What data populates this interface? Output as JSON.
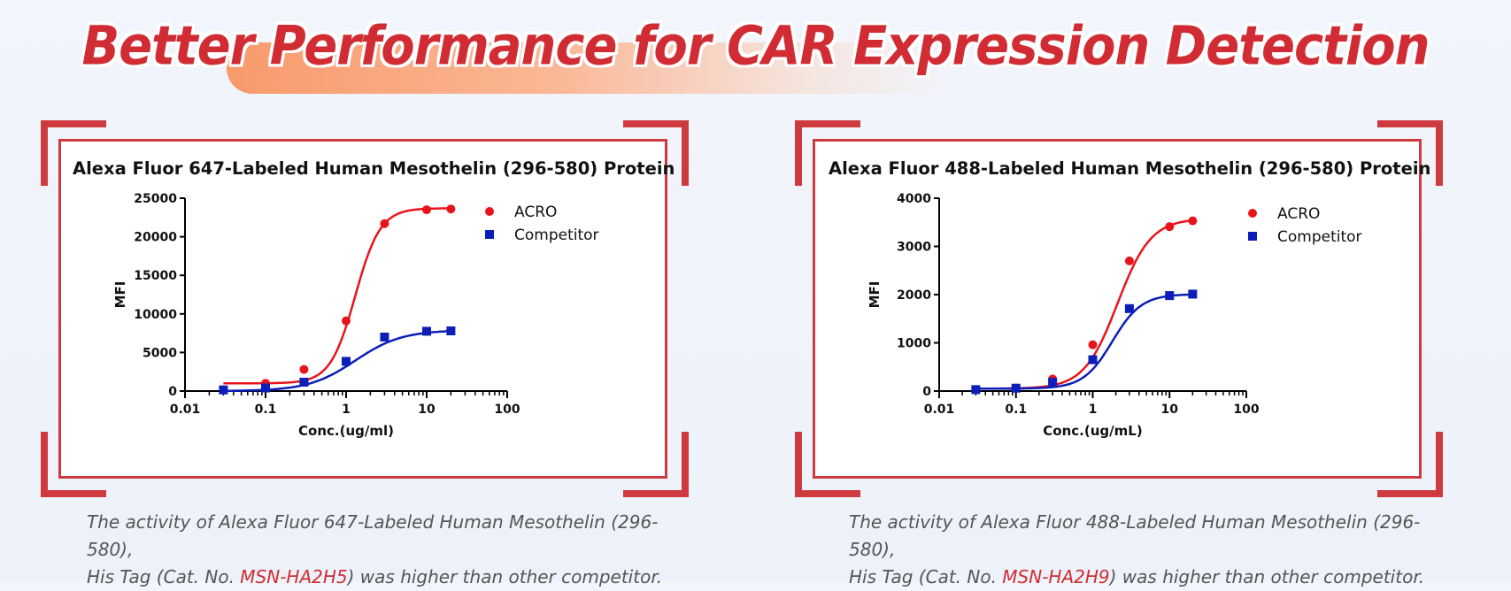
{
  "banner": {
    "title": "Better Performance for CAR Expression Detection"
  },
  "colors": {
    "accent": "#d12c33",
    "acro": "#e8141c",
    "competitor": "#0c1eb8"
  },
  "panels": [
    {
      "caption": {
        "line1": "The activity of Alexa Fluor 647-Labeled Human Mesothelin (296-580),",
        "prefix": "His Tag (Cat. No. ",
        "cat_no": "MSN-HA2H5",
        "suffix": ") was higher than other competitor."
      }
    },
    {
      "caption": {
        "line1": "The activity of Alexa Fluor 488-Labeled Human Mesothelin (296-580),",
        "prefix": "His Tag (Cat. No. ",
        "cat_no": "MSN-HA2H9",
        "suffix": ") was higher than other competitor."
      }
    }
  ],
  "chart_data": [
    {
      "type": "scatter",
      "title": "Alexa Fluor 647-Labeled Human Mesothelin (296-580) Protein",
      "xlabel": "Conc.(ug/ml)",
      "ylabel": "MFI",
      "xscale": "log",
      "xlim": [
        0.01,
        100
      ],
      "ylim": [
        0,
        25000
      ],
      "xticks": [
        "0.01",
        "0.1",
        "1",
        "10",
        "100"
      ],
      "yticks": [
        "0",
        "5000",
        "10000",
        "15000",
        "20000",
        "25000"
      ],
      "legend_position": "top-right",
      "grid": false,
      "series": [
        {
          "name": "ACRO",
          "marker": "circle",
          "x": [
            0.03,
            0.1,
            0.3,
            1,
            3,
            10,
            20
          ],
          "y": [
            150,
            1000,
            2800,
            9100,
            21700,
            23500,
            23600
          ],
          "fit": {
            "bottom": 1000,
            "top": 23700,
            "ec50": 1.3,
            "hill": 2.8
          }
        },
        {
          "name": "Competitor",
          "marker": "square",
          "x": [
            0.03,
            0.1,
            0.3,
            1,
            3,
            10,
            20
          ],
          "y": [
            150,
            400,
            1150,
            3850,
            7000,
            7750,
            7800
          ],
          "fit": {
            "bottom": 0,
            "top": 7900,
            "ec50": 1.3,
            "hill": 1.5
          }
        }
      ]
    },
    {
      "type": "scatter",
      "title": "Alexa Fluor 488-Labeled Human Mesothelin (296-580) Protein",
      "xlabel": "Conc.(ug/mL)",
      "ylabel": "MFI",
      "xscale": "log",
      "xlim": [
        0.01,
        100
      ],
      "ylim": [
        0,
        4000
      ],
      "xticks": [
        "0.01",
        "0.1",
        "1",
        "10",
        "100"
      ],
      "yticks": [
        "0",
        "1000",
        "2000",
        "3000",
        "4000"
      ],
      "legend_position": "top-right",
      "grid": false,
      "series": [
        {
          "name": "ACRO",
          "marker": "circle",
          "x": [
            0.03,
            0.1,
            0.3,
            1,
            3,
            10,
            20
          ],
          "y": [
            30,
            60,
            250,
            960,
            2700,
            3410,
            3530
          ],
          "fit": {
            "bottom": 50,
            "top": 3580,
            "ec50": 2.1,
            "hill": 2.0
          }
        },
        {
          "name": "Competitor",
          "marker": "square",
          "x": [
            0.03,
            0.1,
            0.3,
            1,
            3,
            10,
            20
          ],
          "y": [
            30,
            60,
            180,
            650,
            1710,
            1980,
            2010
          ],
          "fit": {
            "bottom": 50,
            "top": 2010,
            "ec50": 1.8,
            "hill": 2.3
          }
        }
      ]
    }
  ]
}
